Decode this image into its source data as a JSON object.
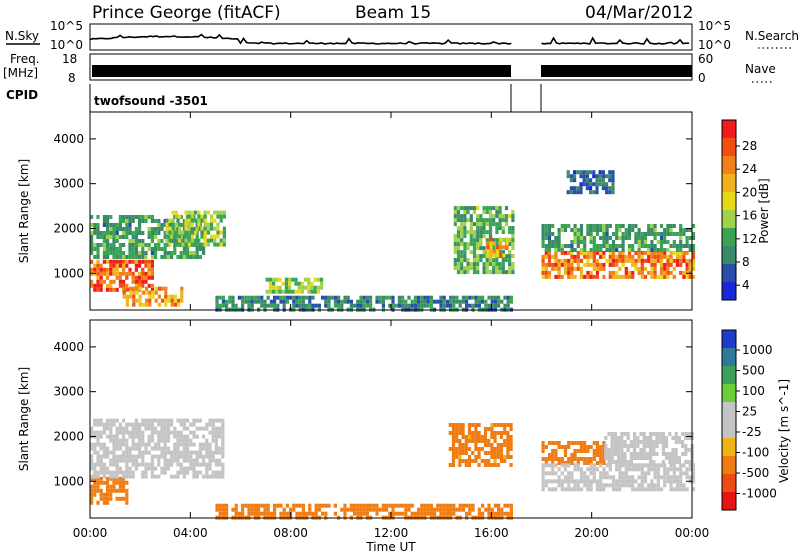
{
  "header": {
    "station": "Prince George (fitACF)",
    "beam": "Beam 15",
    "date": "04/Mar/2012"
  },
  "strips": {
    "nsky_label": "N.Sky",
    "nsky_tick_top": "10^5",
    "nsky_tick_bottom": "10^0",
    "nsearch_label": "N.Search",
    "nsearch_tick_top": "10^5",
    "nsearch_tick_bottom": "10^0",
    "freq_label": "Freq.",
    "freq_unit": "[MHz]",
    "freq_tick_top": "18",
    "freq_tick_bottom": "8",
    "nave_label": "Nave",
    "nave_tick_top": "60",
    "nave_tick_bottom": "0",
    "cpid_label": "CPID",
    "cpid_value": "twofsound -3501"
  },
  "time_axis": {
    "xlabel": "Time UT",
    "ticks": [
      "00:00",
      "04:00",
      "08:00",
      "12:00",
      "16:00",
      "20:00",
      "00:00"
    ]
  },
  "range_axis": {
    "ylabel": "Slant Range [km]",
    "ticks": [
      "1000",
      "2000",
      "3000",
      "4000"
    ]
  },
  "power_colorbar": {
    "label": "Power [dB]",
    "ticks": [
      "28",
      "24",
      "20",
      "16",
      "12",
      "8",
      "4"
    ],
    "colors": [
      "#ee1c1c",
      "#f04e12",
      "#f0801a",
      "#f2b11e",
      "#e8d81a",
      "#9fd24a",
      "#3aa455",
      "#3a8a6a",
      "#284ea8",
      "#1828d8"
    ]
  },
  "velocity_colorbar": {
    "label": "Velocity [m s^-1]",
    "ticks": [
      "1000",
      "500",
      "100",
      "25",
      "-25",
      "-100",
      "-500",
      "-1000"
    ],
    "colors": [
      "#1f3cc8",
      "#2f7a9a",
      "#3ca05a",
      "#6ccf3a",
      "#c4c4c4",
      "#c4c4c4",
      "#eeb414",
      "#f07c14",
      "#f04a14",
      "#e81414"
    ]
  },
  "chart_data": [
    {
      "type": "heatmap",
      "title": "Power",
      "xlabel": "Time UT",
      "ylabel": "Slant Range [km]",
      "xlim": [
        "00:00",
        "24:00"
      ],
      "ylim": [
        180,
        4600
      ],
      "colorbar_range_dB": [
        0,
        32
      ],
      "gaps_UT": [
        [
          "16:50",
          "17:55"
        ]
      ],
      "regions": [
        {
          "t0": 0.0,
          "t1": 2.5,
          "r0": 600,
          "r1": 1300,
          "value": 26
        },
        {
          "t0": 1.3,
          "t1": 3.6,
          "r0": 300,
          "r1": 700,
          "value": 22
        },
        {
          "t0": 0.0,
          "t1": 4.5,
          "r0": 1400,
          "r1": 2300,
          "value": 10
        },
        {
          "t0": 3.0,
          "t1": 5.3,
          "r0": 1600,
          "r1": 2400,
          "value": 14
        },
        {
          "t0": 5.0,
          "t1": 16.8,
          "r0": 200,
          "r1": 500,
          "value": 8
        },
        {
          "t0": 7.0,
          "t1": 9.2,
          "r0": 600,
          "r1": 900,
          "value": 14
        },
        {
          "t0": 14.5,
          "t1": 16.8,
          "r0": 1000,
          "r1": 2500,
          "value": 12
        },
        {
          "t0": 15.8,
          "t1": 16.6,
          "r0": 1400,
          "r1": 1800,
          "value": 22
        },
        {
          "t0": 18.0,
          "t1": 24.0,
          "r0": 900,
          "r1": 1500,
          "value": 24
        },
        {
          "t0": 18.0,
          "t1": 24.0,
          "r0": 1500,
          "r1": 2100,
          "value": 10
        },
        {
          "t0": 19.0,
          "t1": 20.8,
          "r0": 2800,
          "r1": 3300,
          "value": 6
        }
      ]
    },
    {
      "type": "heatmap",
      "title": "Velocity",
      "xlabel": "Time UT",
      "ylabel": "Slant Range [km]",
      "xlim": [
        "00:00",
        "24:00"
      ],
      "ylim": [
        180,
        4600
      ],
      "colorbar_ticks_m_per_s": [
        -1000,
        -500,
        -100,
        -25,
        25,
        100,
        500,
        1000
      ],
      "gaps_UT": [
        [
          "16:50",
          "17:55"
        ]
      ],
      "regions": [
        {
          "t0": 0.0,
          "t1": 1.5,
          "r0": 500,
          "r1": 1100,
          "value": -150
        },
        {
          "t0": 0.0,
          "t1": 5.3,
          "r0": 1100,
          "r1": 2400,
          "value": 0
        },
        {
          "t0": 5.0,
          "t1": 16.8,
          "r0": 200,
          "r1": 500,
          "value": -200
        },
        {
          "t0": 14.3,
          "t1": 16.8,
          "r0": 1400,
          "r1": 2300,
          "value": -120
        },
        {
          "t0": 18.0,
          "t1": 20.5,
          "r0": 1400,
          "r1": 1900,
          "value": -150
        },
        {
          "t0": 18.0,
          "t1": 24.0,
          "r0": 800,
          "r1": 1400,
          "value": 0
        },
        {
          "t0": 20.5,
          "t1": 24.0,
          "r0": 1400,
          "r1": 2100,
          "value": 0
        }
      ]
    }
  ]
}
